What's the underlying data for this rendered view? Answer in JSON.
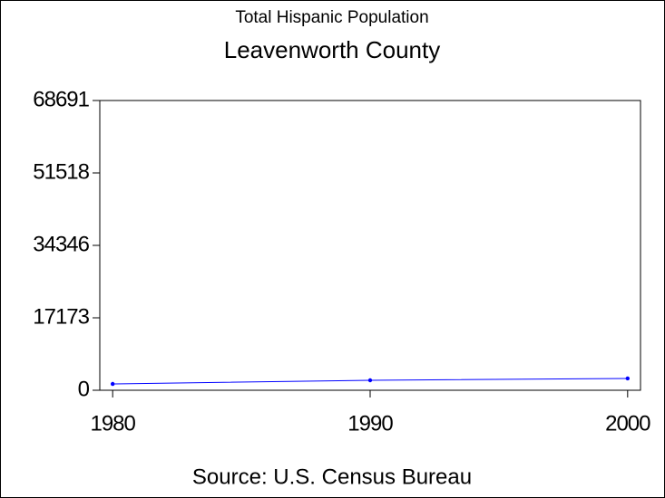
{
  "chart_data": {
    "type": "line",
    "title": "Total Hispanic Population",
    "subtitle": "Leavenworth County",
    "source": "Source: U.S. Census Bureau",
    "x": [
      1980,
      1990,
      2000
    ],
    "series": [
      {
        "color": "#0000ff",
        "values": [
          1500,
          2360,
          2800
        ]
      }
    ],
    "xlim": [
      1979.5,
      2000.5
    ],
    "xticks": [
      1980,
      1990,
      2000
    ],
    "ylim": [
      0,
      68691
    ],
    "yticks": [
      0,
      17173,
      34346,
      51518,
      68691
    ]
  }
}
